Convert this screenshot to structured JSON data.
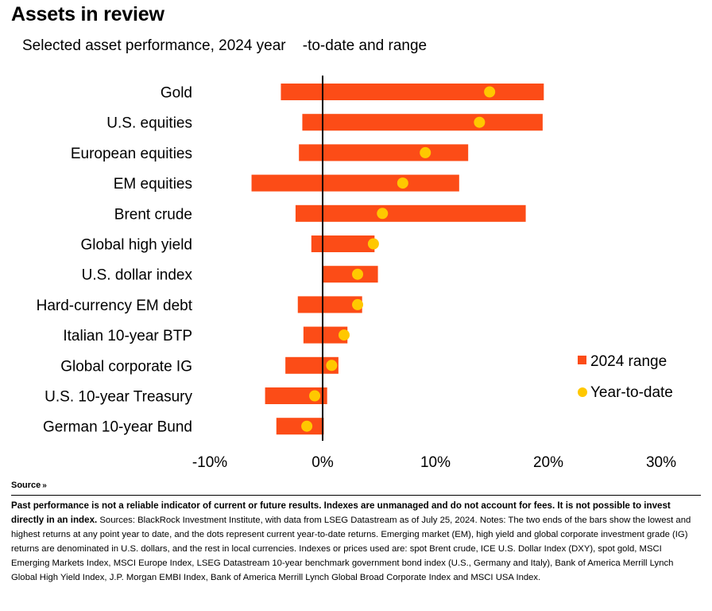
{
  "header": {
    "title": "Assets in review",
    "subtitle": "Selected asset performance, 2024 year    -to-date and range"
  },
  "colors": {
    "range_bar": "#fc4c17",
    "ytd_dot": "#ffc800",
    "zero_line": "#000000"
  },
  "chart_data": {
    "type": "bar",
    "orientation": "horizontal",
    "categories": [
      "Gold",
      "U.S. equities",
      "European equities",
      "EM equities",
      "Brent crude",
      "Global high yield",
      "U.S. dollar index",
      "Hard-currency EM debt",
      "Italian 10-year BTP",
      "Global corporate IG",
      "U.S. 10-year Treasury",
      "German 10-year Bund"
    ],
    "series": [
      {
        "name": "2024 range",
        "kind": "range",
        "low": [
          -3.7,
          -1.8,
          -2.1,
          -6.3,
          -2.4,
          -1.0,
          0.0,
          -2.2,
          -1.7,
          -3.3,
          -5.1,
          -4.1
        ],
        "high": [
          19.6,
          19.5,
          12.9,
          12.1,
          18.0,
          4.6,
          4.9,
          3.5,
          2.2,
          1.4,
          0.4,
          0.1
        ]
      },
      {
        "name": "Year-to-date",
        "kind": "point",
        "values": [
          14.8,
          13.9,
          9.1,
          7.1,
          5.3,
          4.5,
          3.1,
          3.1,
          1.9,
          0.8,
          -0.7,
          -1.4
        ]
      }
    ],
    "xlim": [
      -10,
      30
    ],
    "x_ticks": [
      "-10%",
      "0%",
      "10%",
      "20%",
      "30%"
    ],
    "x_tick_values": [
      -10,
      0,
      10,
      20,
      30
    ],
    "legend_placement": "right",
    "grid": false
  },
  "footer": {
    "source_label": "Source",
    "source_chevron": "»",
    "bold_text": "Past performance is not a reliable indicator of current or future results. Indexes are unmanaged and do not account for fees. It is not possible to invest directly in an index.",
    "body_text": " Sources: BlackRock Investment Institute, with data from LSEG Datastream as of July 25, 2024. Notes: The two ends of the bars show the lowest and highest returns at any point year to date, and the dots represent current year-to-date returns. Emerging market (EM), high yield and global corporate investment grade (IG) returns are denominated in U.S. dollars, and the rest in local currencies. Indexes or prices used are: spot Brent crude, ICE U.S. Dollar Index (DXY), spot gold, MSCI Emerging Markets Index, MSCI Europe Index, LSEG Datastream 10-year benchmark government bond index (U.S., Germany and Italy), Bank of America Merrill Lynch Global High Yield Index, J.P. Morgan EMBI Index, Bank of America Merrill Lynch Global Broad Corporate Index and MSCI USA Index."
  }
}
